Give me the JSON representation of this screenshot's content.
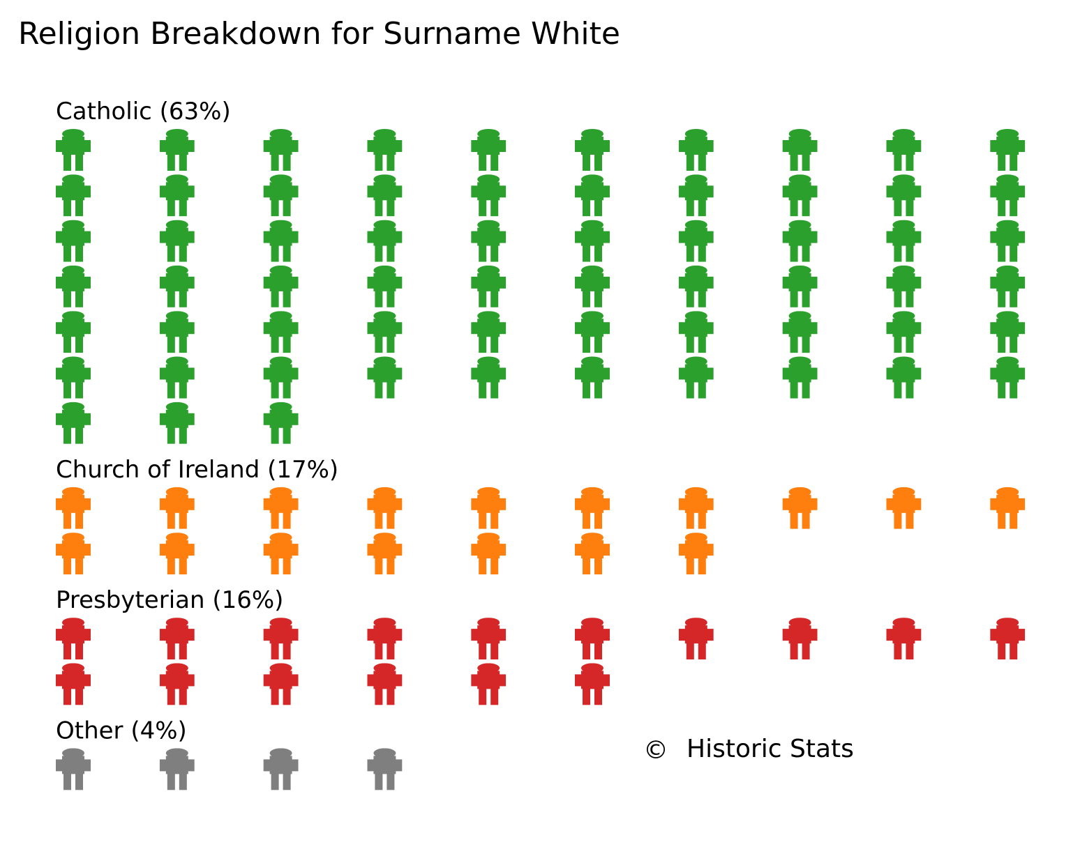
{
  "chart_data": {
    "type": "pictogram",
    "title": "Religion Breakdown for Surname White",
    "unit": "1 figure = 1%",
    "icon": "person-icon",
    "icons_per_row": 10,
    "groups": [
      {
        "name": "Catholic",
        "label": "Catholic (63%)",
        "value": 63,
        "color": "#2ca02c"
      },
      {
        "name": "Church of Ireland",
        "label": "Church of Ireland (17%)",
        "value": 17,
        "color": "#ff7f0e"
      },
      {
        "name": "Presbyterian",
        "label": "Presbyterian (16%)",
        "value": 16,
        "color": "#d62728"
      },
      {
        "name": "Other",
        "label": "Other (4%)",
        "value": 4,
        "color": "#7f7f7f"
      }
    ]
  },
  "credit": {
    "symbol": "©",
    "text": "Historic Stats"
  }
}
